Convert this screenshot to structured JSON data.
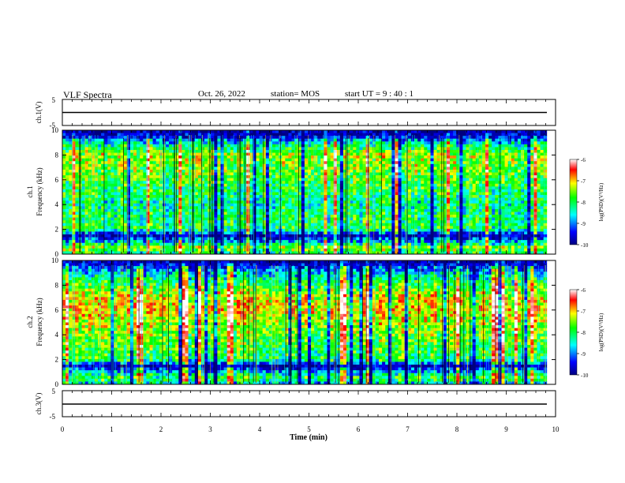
{
  "header": {
    "title": "VLF Spectra",
    "date": "Oct. 26, 2022",
    "station": "station= MOS",
    "start_ut": "start UT =  9 : 40 : 1"
  },
  "chart_data": [
    {
      "type": "line",
      "panel": "ch1-voltage",
      "ylabel": "ch.1(V)",
      "ylim": [
        -5,
        5
      ],
      "yticks": [
        "5",
        "-5"
      ],
      "xlim": [
        0,
        10
      ],
      "series": [
        {
          "x": [
            0,
            9.82
          ],
          "y": [
            0,
            0
          ]
        }
      ]
    },
    {
      "type": "heatmap",
      "panel": "ch1-spectrogram",
      "ylabel": "ch.1\nFrequency (kHz)",
      "ylim": [
        0,
        10
      ],
      "yticks": [
        "0",
        "2",
        "4",
        "6",
        "8",
        "10"
      ],
      "xlim": [
        0,
        10
      ],
      "data_end_min": 9.82,
      "band_level_by_freq_khz": {
        "freq": [
          0,
          0.5,
          1.0,
          1.5,
          2.0,
          3.0,
          4.0,
          5.0,
          6.0,
          7.0,
          8.0,
          9.0,
          9.5,
          10.0
        ],
        "level": [
          0.4,
          0.6,
          0.3,
          0.05,
          0.45,
          0.45,
          0.4,
          0.45,
          0.5,
          0.55,
          0.6,
          0.35,
          0.1,
          0.05
        ]
      },
      "colorbar": {
        "label": "log(PSD)(V²/Hz)",
        "ticks": [
          "-6",
          "-7",
          "-8",
          "-9",
          "-10"
        ],
        "range": [
          -10,
          -6
        ]
      }
    },
    {
      "type": "heatmap",
      "panel": "ch2-spectrogram",
      "ylabel": "ch.2\nFrequency (kHz)",
      "ylim": [
        0,
        10
      ],
      "yticks": [
        "0",
        "2",
        "4",
        "6",
        "8",
        "10"
      ],
      "xlim": [
        0,
        10
      ],
      "data_end_min": 9.82,
      "band_level_by_freq_khz": {
        "freq": [
          0,
          0.5,
          1.0,
          1.5,
          2.0,
          3.0,
          4.0,
          5.0,
          6.0,
          7.0,
          8.0,
          9.0,
          9.5,
          10.0
        ],
        "level": [
          0.3,
          0.5,
          0.3,
          0.05,
          0.45,
          0.5,
          0.55,
          0.6,
          0.7,
          0.65,
          0.5,
          0.3,
          0.15,
          0.05
        ]
      },
      "colorbar": {
        "label": "log(PSD)(V²/Hz)",
        "ticks": [
          "-6",
          "-7",
          "-8",
          "-9",
          "-10"
        ],
        "range": [
          -10,
          -6
        ]
      }
    },
    {
      "type": "line",
      "panel": "ch3-voltage",
      "ylabel": "ch.3(V)",
      "ylim": [
        -5,
        5
      ],
      "yticks": [
        "5",
        "-5"
      ],
      "xlim": [
        0,
        10
      ],
      "series": [
        {
          "x": [
            0,
            9.82
          ],
          "y": [
            0,
            0
          ]
        }
      ]
    }
  ],
  "x_axis": {
    "label": "Time (min)",
    "ticks": [
      "0",
      "1",
      "2",
      "3",
      "4",
      "5",
      "6",
      "7",
      "8",
      "9",
      "10"
    ]
  },
  "colors": {
    "colormap": [
      "#000080",
      "#0000ff",
      "#00ffff",
      "#00ff00",
      "#ffff00",
      "#ff0000",
      "#ffffff"
    ]
  }
}
